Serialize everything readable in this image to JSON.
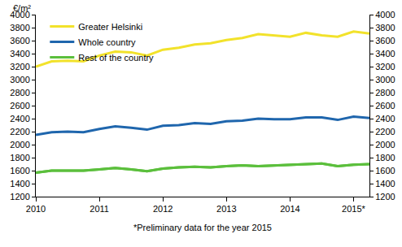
{
  "chart_data": {
    "type": "line",
    "y_label": "€/m²",
    "note": "*Preliminary data for the year 2015",
    "categories": [
      "2010",
      null,
      null,
      null,
      "2011",
      null,
      null,
      null,
      "2012",
      null,
      null,
      null,
      "2013",
      null,
      null,
      null,
      "2014",
      null,
      null,
      null,
      "2015*",
      null
    ],
    "series": [
      {
        "name": "Greater Helsinki",
        "color": "#f2e22b",
        "values": [
          3200,
          3280,
          3290,
          3280,
          3370,
          3430,
          3420,
          3370,
          3460,
          3490,
          3540,
          3560,
          3610,
          3640,
          3700,
          3680,
          3660,
          3720,
          3680,
          3660,
          3740,
          3710
        ]
      },
      {
        "name": "Whole country",
        "color": "#1f66ad",
        "values": [
          2150,
          2190,
          2200,
          2190,
          2240,
          2280,
          2260,
          2230,
          2290,
          2300,
          2330,
          2320,
          2360,
          2370,
          2400,
          2390,
          2390,
          2420,
          2420,
          2380,
          2430,
          2410
        ]
      },
      {
        "name": "Rest of the country",
        "color": "#5bbf3c",
        "values": [
          1570,
          1600,
          1600,
          1600,
          1620,
          1640,
          1620,
          1590,
          1630,
          1650,
          1660,
          1650,
          1670,
          1680,
          1670,
          1680,
          1690,
          1700,
          1710,
          1670,
          1690,
          1700
        ]
      }
    ],
    "ylim": [
      1200,
      4000
    ],
    "yticks": [
      1200,
      1400,
      1600,
      1800,
      2000,
      2200,
      2400,
      2600,
      2800,
      3000,
      3200,
      3400,
      3600,
      3800,
      4000
    ],
    "grid": false,
    "legend": "upper left"
  }
}
